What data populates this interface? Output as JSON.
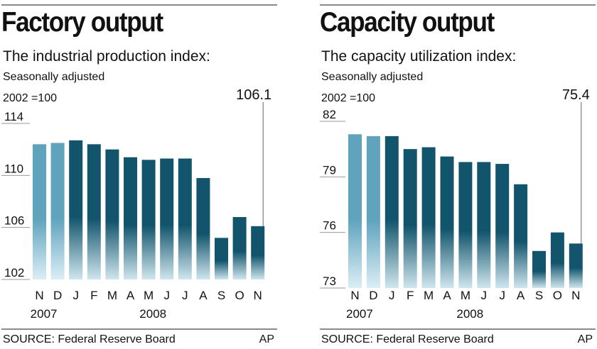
{
  "credit": "AP",
  "chart_data": [
    {
      "type": "bar",
      "title": "Factory output",
      "subtitle": "The industrial production index:",
      "note": "Seasonally adjusted",
      "unit": "2002 =100",
      "source": "SOURCE: Federal Reserve Board",
      "categories": [
        "N",
        "D",
        "J",
        "F",
        "M",
        "A",
        "M",
        "J",
        "J",
        "A",
        "S",
        "O",
        "N"
      ],
      "years": [
        {
          "label": "2007",
          "at": 1
        },
        {
          "label": "2008",
          "at": 7
        }
      ],
      "values": [
        112.4,
        112.5,
        112.7,
        112.4,
        112.0,
        111.4,
        111.2,
        111.3,
        111.3,
        109.8,
        105.2,
        106.8,
        106.1
      ],
      "highlight": {
        "index": 12,
        "label": "106.1"
      },
      "yticks": [
        114,
        110,
        106,
        102
      ],
      "ylim": [
        102,
        114
      ],
      "colors": {
        "2007": "#5fa3bd",
        "2008": "#12546c"
      }
    },
    {
      "type": "bar",
      "title": "Capacity output",
      "subtitle": "The capacity utilization index:",
      "note": "Seasonally adjusted",
      "unit": "2002 =100",
      "source": "SOURCE: Federal Reserve Board",
      "categories": [
        "N",
        "D",
        "J",
        "F",
        "M",
        "A",
        "M",
        "J",
        "J",
        "A",
        "S",
        "O",
        "N"
      ],
      "years": [
        {
          "label": "2007",
          "at": 1
        },
        {
          "label": "2008",
          "at": 7
        }
      ],
      "values": [
        81.3,
        81.2,
        81.2,
        80.5,
        80.6,
        80.1,
        79.8,
        79.8,
        79.7,
        78.6,
        75.0,
        76.0,
        75.4
      ],
      "highlight": {
        "index": 12,
        "label": "75.4"
      },
      "yticks": [
        82,
        79,
        76,
        73
      ],
      "ylim": [
        73,
        82
      ],
      "colors": {
        "2007": "#5fa3bd",
        "2008": "#12546c"
      }
    }
  ]
}
